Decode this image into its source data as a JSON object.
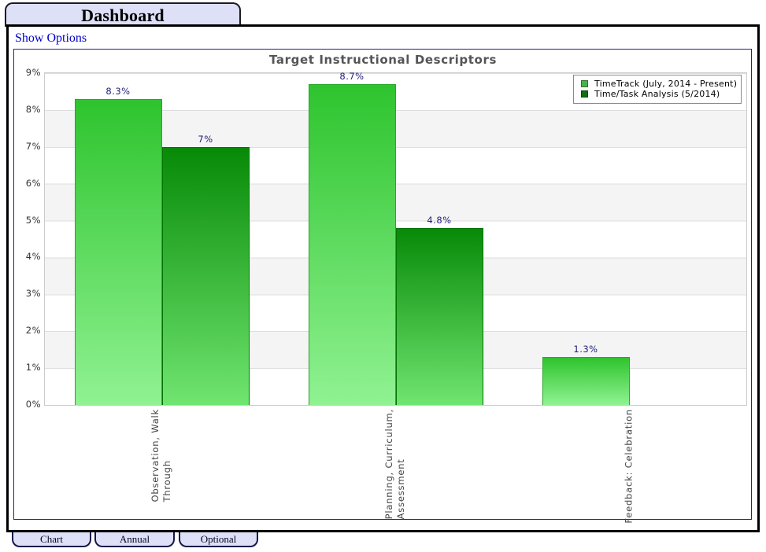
{
  "window": {
    "title": "Dashboard",
    "show_options_label": "Show Options"
  },
  "bottom_tabs": [
    {
      "label": "Chart"
    },
    {
      "label": "Annual"
    },
    {
      "label": "Optional"
    }
  ],
  "chart_data": {
    "type": "bar",
    "title": "Target Instructional Descriptors",
    "categories": [
      [
        "Observation, Walk",
        "Through"
      ],
      [
        "Planning, Curriculum,",
        "Assessment"
      ],
      [
        "Feedback: Celebration"
      ]
    ],
    "series": [
      {
        "name": "TimeTrack (July, 2014 - Present)",
        "values": [
          8.3,
          8.7,
          1.3
        ],
        "value_labels": [
          "8.3%",
          "8.7%",
          "1.3%"
        ],
        "gradient_top": "#2ec42e",
        "gradient_bottom": "#90f292",
        "edge_color": "#27a827",
        "legend_swatch": "#46b44b"
      },
      {
        "name": "Time/Task Analysis (5/2014)",
        "values": [
          7,
          4.8,
          null
        ],
        "value_labels": [
          "7%",
          "4.8%",
          null
        ],
        "gradient_top": "#078a07",
        "gradient_bottom": "#70e570",
        "edge_color": "#067206",
        "legend_swatch": "#106e14"
      }
    ],
    "y_ticks": [
      "0%",
      "1%",
      "2%",
      "3%",
      "4%",
      "5%",
      "6%",
      "7%",
      "8%",
      "9%"
    ],
    "ylim": [
      0,
      9
    ],
    "ylabel": "",
    "xlabel": "",
    "legend_position": "top-right",
    "grid": "horizontal gridlines with alternating 1% background bands",
    "band_colors": [
      "#ffffff",
      "#f4f4f4"
    ],
    "value_label_color": "#1f1f7a"
  }
}
